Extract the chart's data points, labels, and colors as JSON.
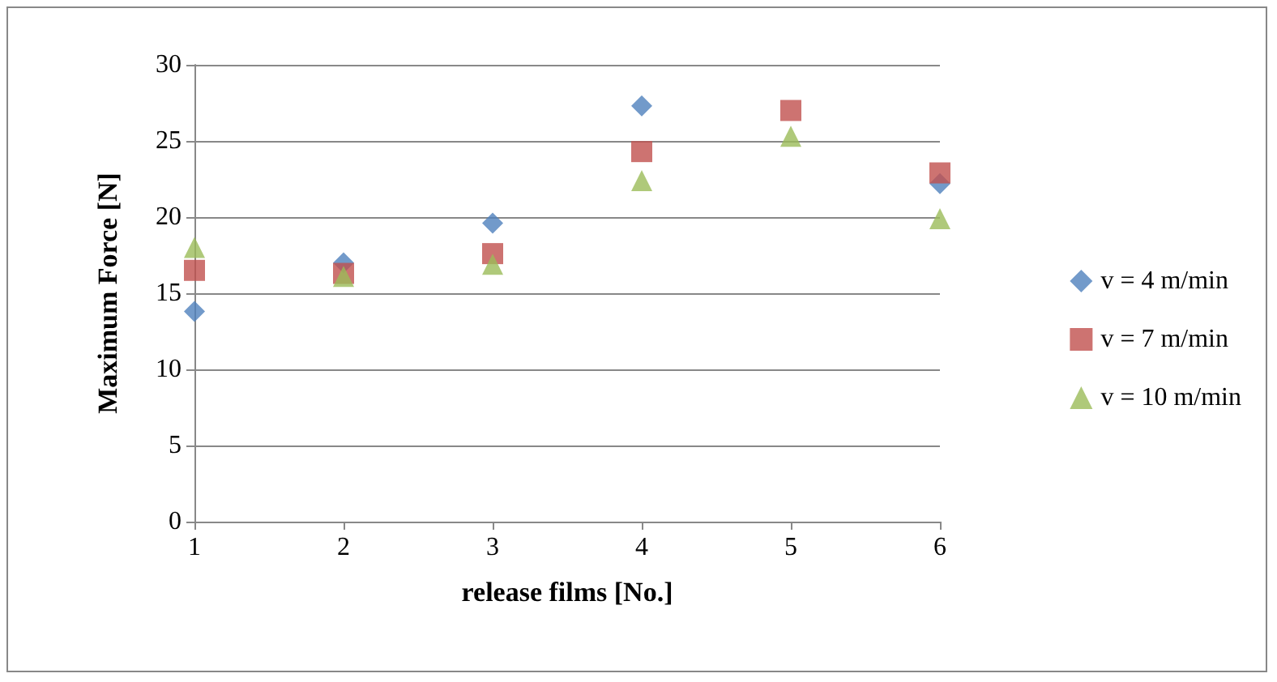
{
  "chart_data": {
    "type": "scatter",
    "xlabel": "release films [No.]",
    "ylabel": "Maximum Force [N]",
    "x": [
      1,
      2,
      3,
      4,
      5,
      6
    ],
    "series": [
      {
        "name": "v = 4 m/min",
        "color": "#4f81bd",
        "marker": "diamond",
        "values": [
          13.8,
          17.0,
          19.6,
          27.3,
          null,
          22.2
        ]
      },
      {
        "name": "v = 7 m/min",
        "color": "#c0504d",
        "marker": "square",
        "values": [
          16.5,
          16.3,
          17.6,
          24.3,
          27.0,
          22.9
        ]
      },
      {
        "name": "v = 10 m/min",
        "color": "#9bbb59",
        "marker": "triangle",
        "values": [
          18.0,
          16.1,
          16.9,
          22.4,
          25.3,
          19.9
        ]
      }
    ],
    "xlim": [
      1,
      6
    ],
    "xticks": [
      1,
      2,
      3,
      4,
      5,
      6
    ],
    "ylim": [
      0,
      30
    ],
    "yticks": [
      0,
      5,
      10,
      15,
      20,
      25,
      30
    ],
    "grid": "y",
    "legend": "right"
  }
}
